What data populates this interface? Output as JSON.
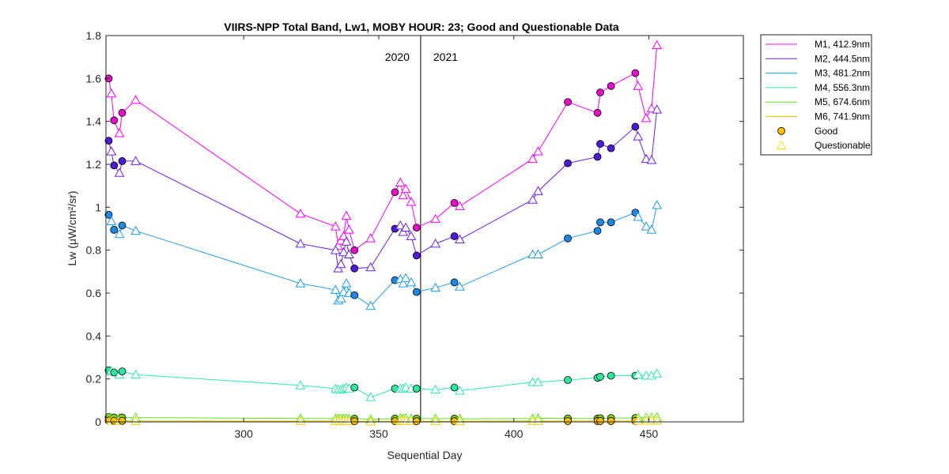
{
  "chart_data": {
    "type": "line",
    "title": "VIIRS-NPP Total Band,  Lw1, MOBY HOUR: 23;  Good and Questionable Data",
    "xlabel": "Sequential Day",
    "ylabel": "Lw (μW/cm²/sr)",
    "xlim": [
      249,
      485
    ],
    "ylim": [
      0,
      1.8
    ],
    "xticks": [
      300,
      350,
      400,
      450
    ],
    "yticks": [
      0,
      0.2,
      0.4,
      0.6,
      0.8,
      1,
      1.2,
      1.4,
      1.6,
      1.8
    ],
    "ytick_labels": [
      "0",
      "0.2",
      "0.4",
      "0.6",
      "0.8",
      "1",
      "1.2",
      "1.4",
      "1.6",
      "1.8"
    ],
    "grid": false,
    "legend_position": "outside-top-right",
    "year_divider": {
      "x": 365.5,
      "left_label": "2020",
      "right_label": "2021"
    },
    "series": [
      {
        "name": "M1, 412.9nm",
        "color": "#ff00ff",
        "marker_fill": "#e60ec8",
        "points": [
          [
            250,
            1.6,
            "G"
          ],
          [
            251,
            1.53,
            "Q"
          ],
          [
            252,
            1.405,
            "G"
          ],
          [
            254,
            1.345,
            "Q"
          ],
          [
            255,
            1.44,
            "G"
          ],
          [
            260,
            1.5,
            "Q"
          ],
          [
            321,
            0.97,
            "Q"
          ],
          [
            334,
            0.91,
            "Q"
          ],
          [
            335,
            0.82,
            "Q"
          ],
          [
            336,
            0.845,
            "Q"
          ],
          [
            337,
            0.865,
            "Q"
          ],
          [
            338,
            0.96,
            "Q"
          ],
          [
            339,
            0.895,
            "Q"
          ],
          [
            341,
            0.8,
            "G"
          ],
          [
            347,
            0.855,
            "Q"
          ],
          [
            356,
            1.07,
            "G"
          ],
          [
            358,
            1.115,
            "Q"
          ],
          [
            359,
            1.055,
            "Q"
          ],
          [
            360,
            1.085,
            "Q"
          ],
          [
            362,
            1.025,
            "Q"
          ],
          [
            364,
            0.905,
            "G"
          ],
          [
            371,
            0.945,
            "Q"
          ],
          [
            378,
            1.02,
            "G"
          ],
          [
            380,
            1.005,
            "Q"
          ],
          [
            407,
            1.225,
            "Q"
          ],
          [
            409,
            1.26,
            "Q"
          ],
          [
            420,
            1.49,
            "G"
          ],
          [
            431,
            1.44,
            "G"
          ],
          [
            432,
            1.535,
            "G"
          ],
          [
            436,
            1.565,
            "G"
          ],
          [
            445,
            1.625,
            "G"
          ],
          [
            446,
            1.565,
            "Q"
          ],
          [
            449,
            1.415,
            "Q"
          ],
          [
            451,
            1.46,
            "Q"
          ],
          [
            453,
            1.755,
            "Q"
          ]
        ]
      },
      {
        "name": "M2, 444.5nm",
        "color": "#6b21e8",
        "marker_fill": "#4d1ad6",
        "points": [
          [
            250,
            1.31,
            "G"
          ],
          [
            251,
            1.26,
            "Q"
          ],
          [
            252,
            1.195,
            "G"
          ],
          [
            254,
            1.16,
            "Q"
          ],
          [
            255,
            1.215,
            "G"
          ],
          [
            260,
            1.215,
            "Q"
          ],
          [
            321,
            0.83,
            "Q"
          ],
          [
            334,
            0.8,
            "Q"
          ],
          [
            335,
            0.715,
            "Q"
          ],
          [
            336,
            0.735,
            "Q"
          ],
          [
            337,
            0.79,
            "Q"
          ],
          [
            338,
            0.84,
            "Q"
          ],
          [
            339,
            0.78,
            "Q"
          ],
          [
            341,
            0.715,
            "G"
          ],
          [
            347,
            0.72,
            "Q"
          ],
          [
            356,
            0.9,
            "G"
          ],
          [
            358,
            0.915,
            "Q"
          ],
          [
            359,
            0.885,
            "Q"
          ],
          [
            360,
            0.905,
            "Q"
          ],
          [
            362,
            0.865,
            "Q"
          ],
          [
            364,
            0.775,
            "G"
          ],
          [
            371,
            0.83,
            "Q"
          ],
          [
            378,
            0.865,
            "G"
          ],
          [
            380,
            0.85,
            "Q"
          ],
          [
            407,
            1.035,
            "Q"
          ],
          [
            409,
            1.075,
            "Q"
          ],
          [
            420,
            1.205,
            "G"
          ],
          [
            431,
            1.235,
            "G"
          ],
          [
            432,
            1.295,
            "G"
          ],
          [
            436,
            1.275,
            "G"
          ],
          [
            445,
            1.375,
            "G"
          ],
          [
            446,
            1.33,
            "Q"
          ],
          [
            449,
            1.225,
            "Q"
          ],
          [
            451,
            1.22,
            "Q"
          ],
          [
            453,
            1.455,
            "Q"
          ]
        ]
      },
      {
        "name": "M3, 481.2nm",
        "color": "#1f9be8",
        "marker_fill": "#1e88e5",
        "points": [
          [
            250,
            0.965,
            "G"
          ],
          [
            251,
            0.935,
            "Q"
          ],
          [
            252,
            0.895,
            "G"
          ],
          [
            254,
            0.875,
            "Q"
          ],
          [
            255,
            0.915,
            "G"
          ],
          [
            260,
            0.89,
            "Q"
          ],
          [
            321,
            0.645,
            "Q"
          ],
          [
            334,
            0.615,
            "Q"
          ],
          [
            335,
            0.565,
            "Q"
          ],
          [
            336,
            0.575,
            "Q"
          ],
          [
            337,
            0.605,
            "Q"
          ],
          [
            338,
            0.645,
            "Q"
          ],
          [
            339,
            0.6,
            "Q"
          ],
          [
            341,
            0.59,
            "G"
          ],
          [
            347,
            0.54,
            "Q"
          ],
          [
            356,
            0.66,
            "G"
          ],
          [
            358,
            0.665,
            "Q"
          ],
          [
            359,
            0.645,
            "Q"
          ],
          [
            360,
            0.67,
            "Q"
          ],
          [
            362,
            0.65,
            "Q"
          ],
          [
            364,
            0.605,
            "G"
          ],
          [
            371,
            0.625,
            "Q"
          ],
          [
            378,
            0.65,
            "G"
          ],
          [
            380,
            0.63,
            "Q"
          ],
          [
            407,
            0.78,
            "Q"
          ],
          [
            409,
            0.78,
            "Q"
          ],
          [
            420,
            0.855,
            "G"
          ],
          [
            431,
            0.89,
            "G"
          ],
          [
            432,
            0.93,
            "G"
          ],
          [
            436,
            0.93,
            "G"
          ],
          [
            445,
            0.975,
            "G"
          ],
          [
            446,
            0.955,
            "Q"
          ],
          [
            449,
            0.91,
            "Q"
          ],
          [
            451,
            0.895,
            "Q"
          ],
          [
            453,
            1.01,
            "Q"
          ]
        ]
      },
      {
        "name": "M4, 556.3nm",
        "color": "#2ee8b0",
        "marker_fill": "#2ee8a0",
        "points": [
          [
            250,
            0.24,
            "G"
          ],
          [
            251,
            0.235,
            "Q"
          ],
          [
            252,
            0.23,
            "G"
          ],
          [
            254,
            0.22,
            "Q"
          ],
          [
            255,
            0.235,
            "G"
          ],
          [
            260,
            0.22,
            "Q"
          ],
          [
            321,
            0.17,
            "Q"
          ],
          [
            334,
            0.155,
            "Q"
          ],
          [
            335,
            0.15,
            "Q"
          ],
          [
            336,
            0.15,
            "Q"
          ],
          [
            337,
            0.155,
            "Q"
          ],
          [
            338,
            0.16,
            "Q"
          ],
          [
            339,
            0.155,
            "Q"
          ],
          [
            341,
            0.16,
            "G"
          ],
          [
            347,
            0.115,
            "Q"
          ],
          [
            356,
            0.155,
            "G"
          ],
          [
            358,
            0.155,
            "Q"
          ],
          [
            359,
            0.155,
            "Q"
          ],
          [
            360,
            0.16,
            "Q"
          ],
          [
            362,
            0.155,
            "Q"
          ],
          [
            364,
            0.155,
            "G"
          ],
          [
            371,
            0.15,
            "Q"
          ],
          [
            378,
            0.16,
            "G"
          ],
          [
            380,
            0.145,
            "Q"
          ],
          [
            407,
            0.185,
            "Q"
          ],
          [
            409,
            0.185,
            "Q"
          ],
          [
            420,
            0.195,
            "G"
          ],
          [
            431,
            0.205,
            "G"
          ],
          [
            432,
            0.21,
            "G"
          ],
          [
            436,
            0.215,
            "G"
          ],
          [
            445,
            0.215,
            "G"
          ],
          [
            446,
            0.22,
            "Q"
          ],
          [
            449,
            0.215,
            "Q"
          ],
          [
            451,
            0.215,
            "Q"
          ],
          [
            453,
            0.225,
            "Q"
          ]
        ]
      },
      {
        "name": "M5, 674.6nm",
        "color": "#5fe81a",
        "marker_fill": "#7ed321",
        "points": [
          [
            250,
            0.022,
            "G"
          ],
          [
            251,
            0.02,
            "Q"
          ],
          [
            252,
            0.02,
            "G"
          ],
          [
            254,
            0.018,
            "Q"
          ],
          [
            255,
            0.02,
            "G"
          ],
          [
            260,
            0.02,
            "Q"
          ],
          [
            321,
            0.016,
            "Q"
          ],
          [
            334,
            0.016,
            "Q"
          ],
          [
            335,
            0.015,
            "Q"
          ],
          [
            336,
            0.015,
            "Q"
          ],
          [
            337,
            0.016,
            "Q"
          ],
          [
            338,
            0.016,
            "Q"
          ],
          [
            339,
            0.015,
            "Q"
          ],
          [
            341,
            0.015,
            "G"
          ],
          [
            347,
            0.012,
            "Q"
          ],
          [
            356,
            0.015,
            "G"
          ],
          [
            358,
            0.018,
            "Q"
          ],
          [
            359,
            0.016,
            "Q"
          ],
          [
            360,
            0.018,
            "Q"
          ],
          [
            362,
            0.016,
            "Q"
          ],
          [
            364,
            0.015,
            "G"
          ],
          [
            371,
            0.015,
            "Q"
          ],
          [
            378,
            0.015,
            "G"
          ],
          [
            380,
            0.014,
            "Q"
          ],
          [
            407,
            0.016,
            "Q"
          ],
          [
            409,
            0.017,
            "Q"
          ],
          [
            420,
            0.016,
            "G"
          ],
          [
            431,
            0.016,
            "G"
          ],
          [
            432,
            0.017,
            "G"
          ],
          [
            436,
            0.018,
            "G"
          ],
          [
            445,
            0.018,
            "G"
          ],
          [
            446,
            0.019,
            "Q"
          ],
          [
            449,
            0.02,
            "Q"
          ],
          [
            451,
            0.02,
            "Q"
          ],
          [
            453,
            0.022,
            "Q"
          ]
        ]
      },
      {
        "name": "M6, 741.9nm",
        "color": "#f0d000",
        "marker_fill": "#ffc000",
        "points": [
          [
            250,
            0.006,
            "G"
          ],
          [
            251,
            0.005,
            "Q"
          ],
          [
            252,
            0.005,
            "G"
          ],
          [
            254,
            0.004,
            "Q"
          ],
          [
            255,
            0.005,
            "G"
          ],
          [
            260,
            0.004,
            "Q"
          ],
          [
            321,
            0.004,
            "Q"
          ],
          [
            334,
            0.004,
            "Q"
          ],
          [
            335,
            0.003,
            "Q"
          ],
          [
            336,
            0.003,
            "Q"
          ],
          [
            337,
            0.004,
            "Q"
          ],
          [
            338,
            0.004,
            "Q"
          ],
          [
            339,
            0.003,
            "Q"
          ],
          [
            341,
            0.003,
            "G"
          ],
          [
            347,
            0.002,
            "Q"
          ],
          [
            356,
            0.003,
            "G"
          ],
          [
            358,
            0.004,
            "Q"
          ],
          [
            359,
            0.004,
            "Q"
          ],
          [
            360,
            0.004,
            "Q"
          ],
          [
            362,
            0.004,
            "Q"
          ],
          [
            364,
            0.003,
            "G"
          ],
          [
            371,
            0.003,
            "Q"
          ],
          [
            378,
            0.003,
            "G"
          ],
          [
            380,
            0.003,
            "Q"
          ],
          [
            407,
            0.004,
            "Q"
          ],
          [
            409,
            0.004,
            "Q"
          ],
          [
            420,
            0.004,
            "G"
          ],
          [
            431,
            0.004,
            "G"
          ],
          [
            432,
            0.004,
            "G"
          ],
          [
            436,
            0.004,
            "G"
          ],
          [
            445,
            0.004,
            "G"
          ],
          [
            446,
            0.005,
            "Q"
          ],
          [
            449,
            0.005,
            "Q"
          ],
          [
            451,
            0.005,
            "Q"
          ],
          [
            453,
            0.006,
            "Q"
          ]
        ]
      }
    ],
    "legend_markers": [
      {
        "label": "Good",
        "symbol": "circle",
        "fill": "#ffc000",
        "stroke": "#000000"
      },
      {
        "label": "Questionable",
        "symbol": "triangle",
        "fill": "none",
        "stroke": "#ffe000"
      }
    ]
  }
}
